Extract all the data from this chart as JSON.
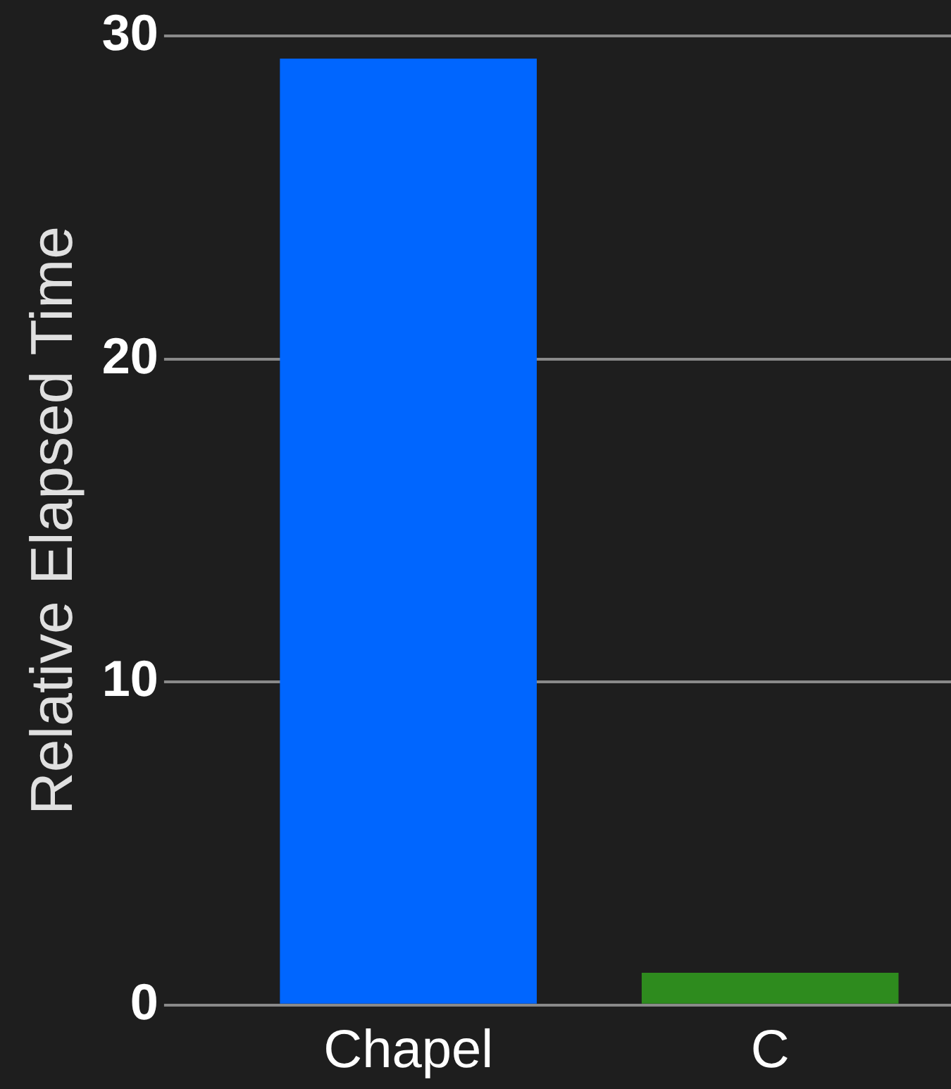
{
  "chart_data": {
    "type": "bar",
    "ylabel": "Relative Elapsed Time",
    "categories": [
      "Chapel",
      "C"
    ],
    "series": [
      {
        "values": [
          29.3,
          1.0
        ],
        "colors": [
          "#0066ff",
          "#2e8b1e"
        ]
      }
    ],
    "ylim": [
      0,
      30
    ],
    "yticks": [
      0,
      10,
      20,
      30
    ],
    "grid": "y",
    "legend": false
  }
}
